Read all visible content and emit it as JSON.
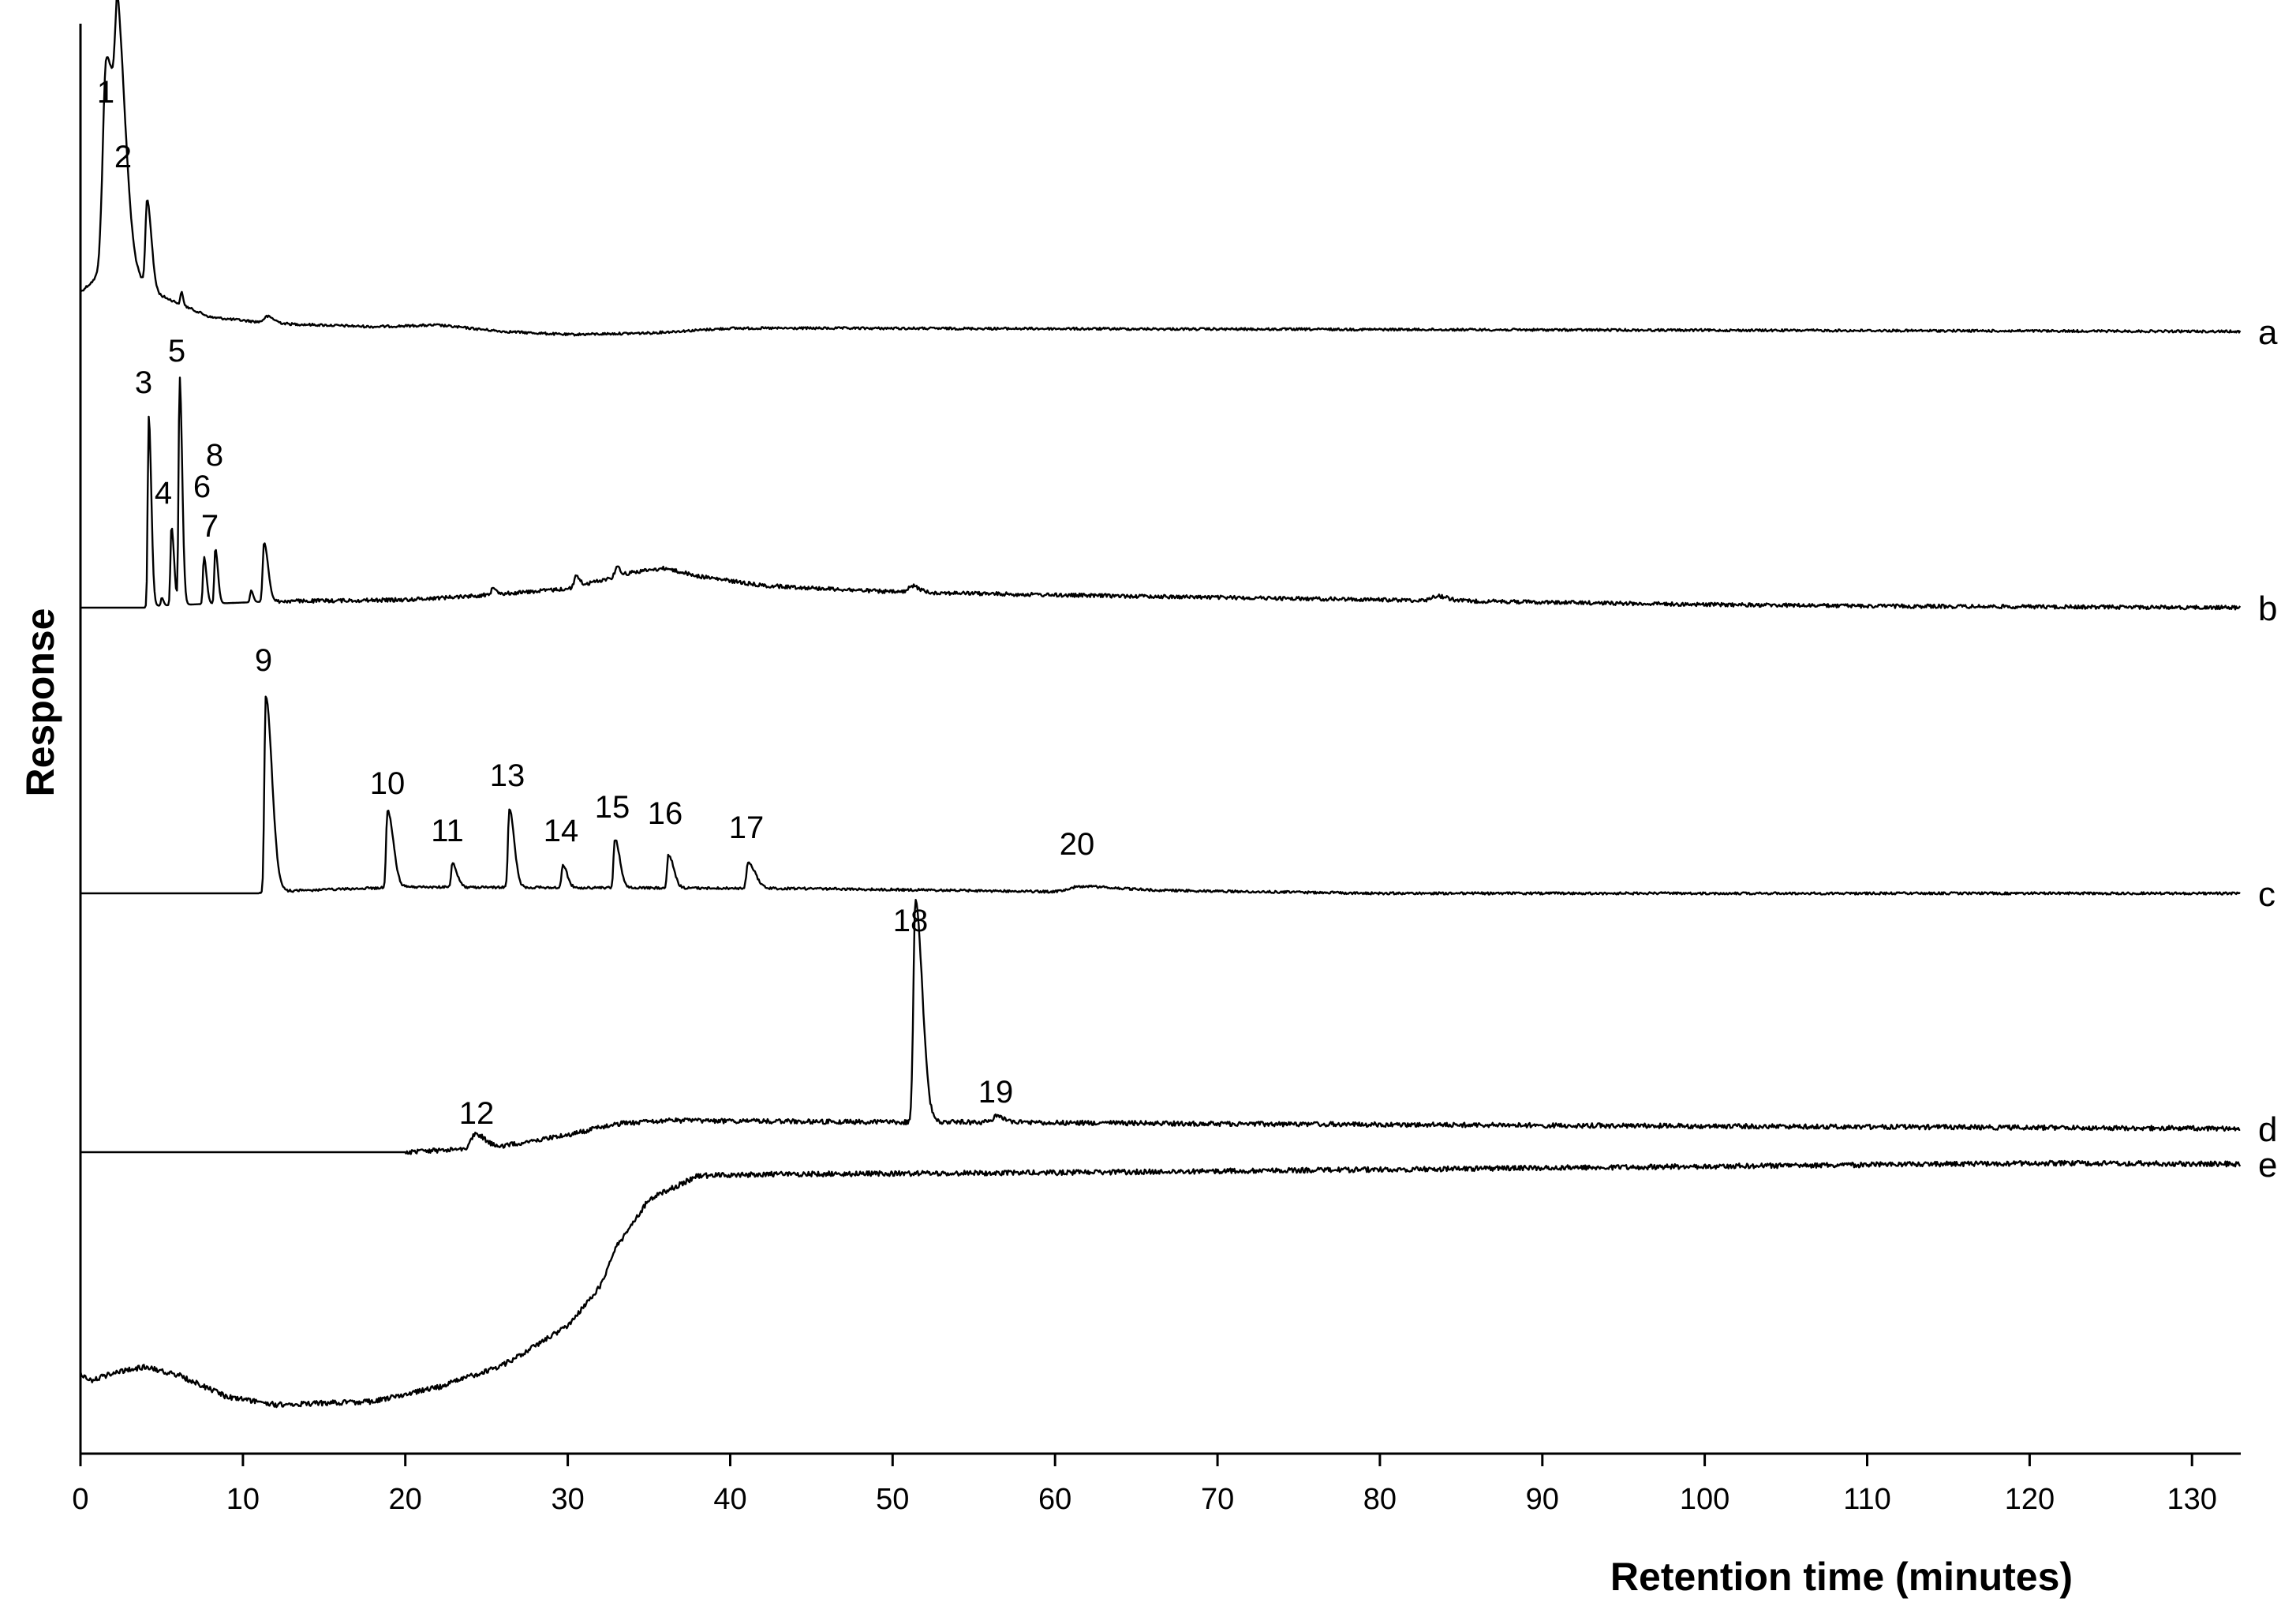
{
  "chart_data": {
    "type": "line",
    "xlabel": "Retention time (minutes)",
    "ylabel": "Response",
    "xlim": [
      0,
      133
    ],
    "x_ticks": [
      0,
      10,
      20,
      30,
      40,
      50,
      60,
      70,
      80,
      90,
      100,
      110,
      120,
      130
    ],
    "grid": false,
    "legend": "none",
    "series": [
      {
        "name": "a",
        "peaks": [
          {
            "label": "1",
            "x": 1.6
          },
          {
            "label": "2",
            "x": 2.3
          }
        ]
      },
      {
        "name": "b",
        "peaks": [
          {
            "label": "3",
            "x": 4.2
          },
          {
            "label": "4",
            "x": 5.6
          },
          {
            "label": "5",
            "x": 6.1
          },
          {
            "label": "6",
            "x": 7.6
          },
          {
            "label": "7",
            "x": 8.1
          },
          {
            "label": "8",
            "x": 8.3
          }
        ]
      },
      {
        "name": "c",
        "peaks": [
          {
            "label": "9",
            "x": 11.4
          },
          {
            "label": "10",
            "x": 18.9
          },
          {
            "label": "11",
            "x": 22.9
          },
          {
            "label": "13",
            "x": 26.4
          },
          {
            "label": "14",
            "x": 29.7
          },
          {
            "label": "15",
            "x": 32.9
          },
          {
            "label": "16",
            "x": 36.2
          },
          {
            "label": "17",
            "x": 41.1
          },
          {
            "label": "20",
            "x": 61.5
          }
        ]
      },
      {
        "name": "d",
        "peaks": [
          {
            "label": "12",
            "x": 24.3
          },
          {
            "label": "18",
            "x": 51.4
          },
          {
            "label": "19",
            "x": 56.4
          }
        ]
      },
      {
        "name": "e",
        "peaks": []
      }
    ]
  }
}
